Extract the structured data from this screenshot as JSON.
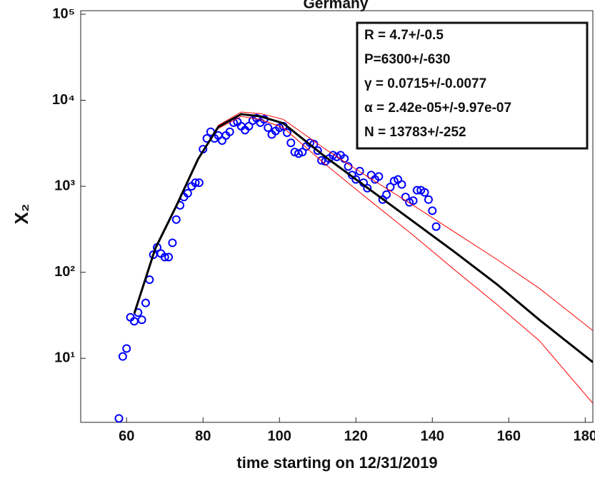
{
  "chart_data": {
    "type": "scatter",
    "title": "Germany",
    "x_label": "time starting on 12/31/2019",
    "y_label": "X₂",
    "xlim": [
      48,
      182
    ],
    "xticks": [
      60,
      80,
      100,
      120,
      140,
      160,
      180
    ],
    "ylim": [
      1.8,
      110000
    ],
    "yticks": [
      {
        "value": 10,
        "label": "10¹"
      },
      {
        "value": 100,
        "label": "10²"
      },
      {
        "value": 1000,
        "label": "10³"
      },
      {
        "value": 10000,
        "label": "10⁴"
      },
      {
        "value": 100000,
        "label": "10⁵"
      }
    ],
    "log_y": true,
    "annotations": [
      "R = 4.7+/-0.5",
      "P=6300+/-630",
      "γ = 0.0715+/-0.0077",
      "α = 2.42e-05+/-9.97e-07",
      "N = 13783+/-252"
    ],
    "series": [
      {
        "type": "scatter",
        "color": "#0000ff",
        "x": [
          58,
          59,
          60,
          61,
          62,
          63,
          64,
          65,
          66,
          67,
          68,
          69,
          70,
          71,
          72,
          73,
          74,
          75,
          76,
          77,
          78,
          79,
          80,
          81,
          82,
          83,
          84,
          85,
          86,
          87,
          88,
          89,
          90,
          91,
          92,
          93,
          94,
          95,
          96,
          97,
          98,
          99,
          100,
          101,
          102,
          103,
          104,
          105,
          106,
          107,
          108,
          109,
          110,
          111,
          112,
          113,
          114,
          115,
          116,
          117,
          118,
          119,
          120,
          121,
          122,
          123,
          124,
          125,
          126,
          127,
          128,
          129,
          130,
          131,
          132,
          133,
          134,
          135,
          136,
          137,
          138,
          139,
          140,
          141
        ],
        "values": [
          2.0,
          10.5,
          13,
          30,
          27,
          34,
          28,
          44,
          82,
          160,
          195,
          165,
          150,
          150,
          220,
          410,
          600,
          750,
          830,
          1000,
          1100,
          1100,
          2700,
          3600,
          4300,
          3600,
          3900,
          3400,
          3900,
          4300,
          5500,
          5600,
          5000,
          4500,
          5000,
          5800,
          6200,
          5500,
          6000,
          4800,
          4000,
          4400,
          4800,
          5000,
          4200,
          3200,
          2500,
          2400,
          2500,
          2900,
          3200,
          3100,
          2600,
          2000,
          1950,
          2100,
          2300,
          2200,
          2300,
          2100,
          1700,
          1350,
          1200,
          1500,
          1100,
          950,
          1350,
          1200,
          1300,
          700,
          800,
          980,
          1150,
          1200,
          1050,
          750,
          650,
          680,
          900,
          900,
          850,
          700,
          520,
          340
        ]
      },
      {
        "type": "line",
        "color": "#ff0000",
        "x": [
          62,
          67.5,
          73,
          78.7,
          84,
          90,
          95,
          101,
          112,
          123,
          135,
          146,
          157,
          168,
          182
        ],
        "values": [
          33,
          188,
          590,
          2070,
          5100,
          7300,
          7000,
          6000,
          2700,
          1300,
          600,
          290,
          140,
          65,
          21
        ]
      },
      {
        "type": "line",
        "color": "#ff0000",
        "x": [
          62,
          67.5,
          73,
          78.7,
          84,
          90,
          95,
          101,
          112,
          123,
          135,
          146,
          157,
          168,
          182
        ],
        "values": [
          33,
          188,
          590,
          2070,
          4700,
          6500,
          6000,
          4800,
          1800,
          720,
          270,
          105,
          42,
          16,
          3.0
        ]
      },
      {
        "type": "line",
        "color": "#000000",
        "x": [
          62,
          67.5,
          73,
          78.7,
          84,
          90,
          95,
          101,
          112,
          123,
          135,
          146,
          157,
          168,
          182
        ],
        "values": [
          33,
          188,
          590,
          2070,
          4900,
          6900,
          6500,
          5400,
          2200,
          960,
          390,
          170,
          72,
          28,
          9
        ]
      }
    ]
  }
}
